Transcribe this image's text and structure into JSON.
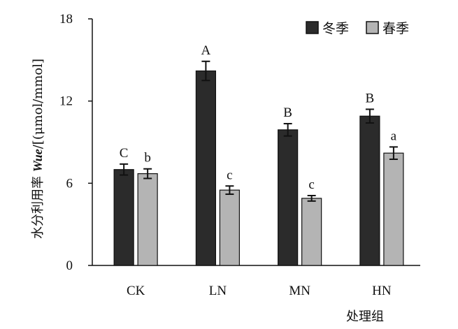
{
  "chart_data": {
    "type": "bar",
    "categories": [
      "CK",
      "LN",
      "MN",
      "HN"
    ],
    "series": [
      {
        "name": "冬季",
        "color": "#2b2b2b",
        "values": [
          7.0,
          14.2,
          9.9,
          10.9
        ],
        "errors": [
          0.4,
          0.7,
          0.45,
          0.5
        ],
        "letters": [
          "C",
          "A",
          "B",
          "B"
        ]
      },
      {
        "name": "春季",
        "color": "#b4b4b4",
        "values": [
          6.7,
          5.5,
          4.9,
          8.2
        ],
        "errors": [
          0.35,
          0.3,
          0.2,
          0.45
        ],
        "letters": [
          "b",
          "c",
          "c",
          "a"
        ]
      }
    ],
    "ylim": [
      0,
      18
    ],
    "yticks": [
      0,
      6,
      12,
      18
    ],
    "ylabel_prefix": "水分利用率 ",
    "ylabel_italic": "Wue",
    "ylabel_suffix": "/[(μmol/mmol]",
    "xlabel": "处理组",
    "legend_position": "top-right",
    "grid": false
  }
}
